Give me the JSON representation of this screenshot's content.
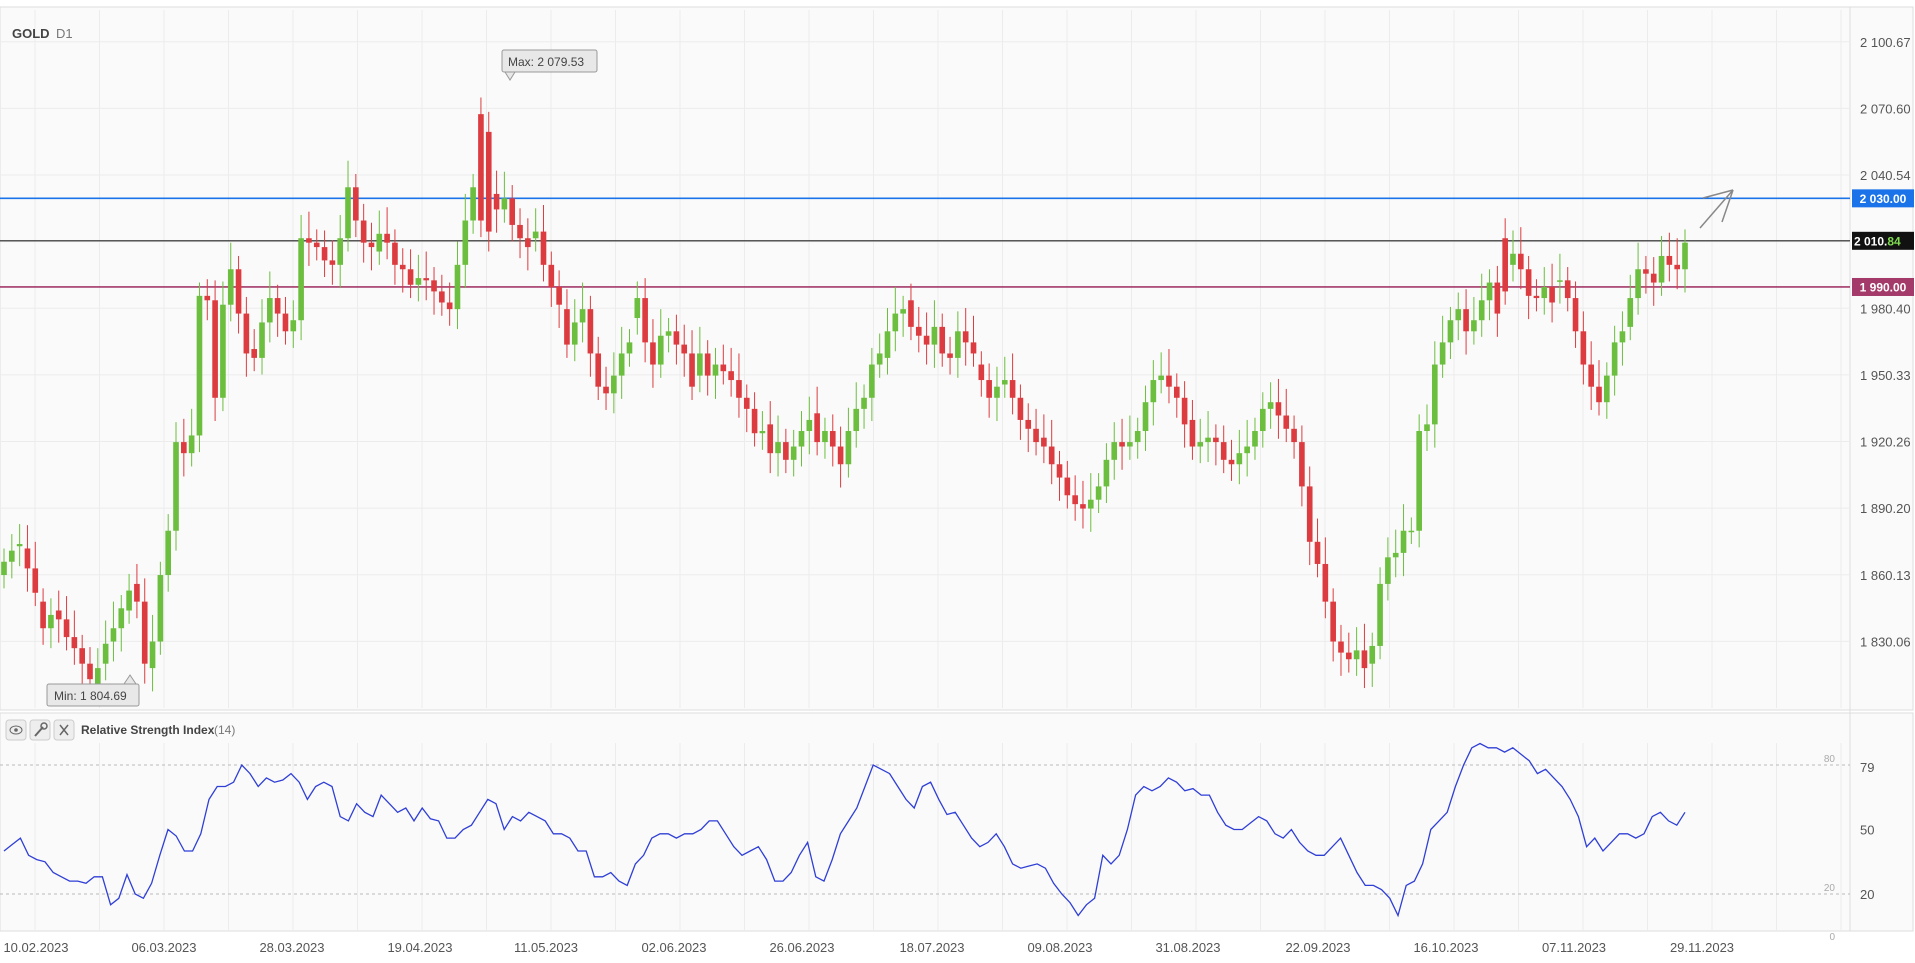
{
  "header": {
    "symbol": "GOLD",
    "timeframe": "D1"
  },
  "colors": {
    "up": "#6cbe3f",
    "down": "#dc3c40",
    "resistance": "#1a73e8",
    "current": "#222222",
    "support": "#a33a6a",
    "rsi": "#2f3fd6",
    "grid": "#ececec"
  },
  "chart_data": [
    {
      "type": "candlestick",
      "title": "",
      "yticks": [
        "2 100.67",
        "2 070.60",
        "2 040.54",
        "2 010.47",
        "1 980.40",
        "1 950.33",
        "1 920.26",
        "1 890.20",
        "1 860.13",
        "1 830.06"
      ],
      "xticks": [
        "10.02.2023",
        "06.03.2023",
        "28.03.2023",
        "19.04.2023",
        "11.05.2023",
        "02.06.2023",
        "26.06.2023",
        "18.07.2023",
        "09.08.2023",
        "31.08.2023",
        "22.09.2023",
        "16.10.2023",
        "07.11.2023",
        "29.11.2023"
      ],
      "ylim": [
        1800,
        2115
      ],
      "levels": [
        {
          "name": "resistance",
          "value": 2030.0,
          "label": "2 030.00"
        },
        {
          "name": "current",
          "value": 2010.84,
          "label_main": "2 010.",
          "label_tail": "84"
        },
        {
          "name": "support",
          "value": 1990.0,
          "label": "1 990.00"
        }
      ],
      "annotations": {
        "max": {
          "label": "Max: 2 079.53",
          "value": 2079.53
        },
        "min": {
          "label": "Min: 1 804.69",
          "value": 1804.69
        }
      },
      "close": [
        1866,
        1871,
        1874,
        1863,
        1852,
        1836,
        1842,
        1840,
        1832,
        1827,
        1820,
        1813,
        1818,
        1829,
        1836,
        1845,
        1853,
        1848,
        1820,
        1830,
        1860,
        1880,
        1920,
        1915,
        1923,
        1986,
        1984,
        1940,
        1982,
        1998,
        1978,
        1960,
        1958,
        1974,
        1985,
        1978,
        1970,
        1975,
        2012,
        2010,
        2008,
        2002,
        2000,
        2012,
        2035,
        2020,
        2010,
        2008,
        2014,
        2010,
        2000,
        1998,
        1991,
        1994,
        1993,
        1988,
        1983,
        1980,
        2000,
        2020,
        2035,
        2020,
        2015,
        2025,
        2030,
        2018,
        2012,
        2008,
        2015,
        2000,
        1990,
        1982,
        1964,
        1974,
        1980,
        1960,
        1945,
        1942,
        1950,
        1960,
        1965,
        1985,
        1965,
        1955,
        1968,
        1970,
        1964,
        1960,
        1945,
        1960,
        1950,
        1955,
        1952,
        1948,
        1940,
        1935,
        1924,
        1925,
        1915,
        1920,
        1912,
        1918,
        1925,
        1930,
        1920,
        1925,
        1918,
        1910,
        1925,
        1935,
        1940,
        1955,
        1960,
        1970,
        1978,
        1980,
        1972,
        1968,
        1964,
        1972,
        1960,
        1958,
        1970,
        1965,
        1960,
        1948,
        1940,
        1945,
        1948,
        1940,
        1930,
        1926,
        1920,
        1918,
        1910,
        1904,
        1896,
        1892,
        1890,
        1894,
        1900,
        1912,
        1920,
        1918,
        1920,
        1925,
        1938,
        1948,
        1950,
        1945,
        1940,
        1928,
        1918,
        1920,
        1922,
        1920,
        1912,
        1910,
        1915,
        1918,
        1925,
        1935,
        1938,
        1932,
        1926,
        1920,
        1900,
        1875,
        1865,
        1848,
        1830,
        1825,
        1822,
        1826,
        1818,
        1828,
        1856,
        1868,
        1870,
        1880,
        1880,
        1925,
        1928,
        1955,
        1965,
        1975,
        1980,
        1970,
        1975,
        1984,
        1992,
        1978,
        1988,
        2005,
        1998,
        1986,
        1985,
        1990,
        1983,
        1993,
        1985,
        1970,
        1955,
        1945,
        1938,
        1950,
        1965,
        1970,
        1985,
        1998,
        1996,
        1992,
        2004,
        2000,
        1998,
        2010
      ],
      "open": [
        1860,
        1866,
        1873,
        1872,
        1863,
        1848,
        1836,
        1844,
        1840,
        1832,
        1827,
        1820,
        1810,
        1820,
        1830,
        1836,
        1844,
        1856,
        1848,
        1818,
        1830,
        1860,
        1880,
        1920,
        1915,
        1923,
        1986,
        1984,
        1940,
        1982,
        1998,
        1978,
        1962,
        1958,
        1974,
        1985,
        1978,
        1970,
        1975,
        2012,
        2010,
        2008,
        2002,
        2000,
        2012,
        2035,
        2020,
        2010,
        2006,
        2014,
        2010,
        2000,
        1998,
        1991,
        1994,
        1993,
        1988,
        1983,
        1980,
        2000,
        2020,
        2068,
        2060,
        2032,
        2025,
        2030,
        2018,
        2012,
        2012,
        2015,
        2000,
        1990,
        1980,
        1964,
        1974,
        1980,
        1960,
        1945,
        1942,
        1950,
        1960,
        1976,
        1985,
        1965,
        1955,
        1968,
        1970,
        1964,
        1960,
        1950,
        1960,
        1950,
        1955,
        1952,
        1948,
        1940,
        1935,
        1924,
        1928,
        1915,
        1920,
        1912,
        1918,
        1925,
        1933,
        1920,
        1925,
        1918,
        1910,
        1925,
        1935,
        1940,
        1955,
        1958,
        1970,
        1978,
        1984,
        1972,
        1968,
        1964,
        1972,
        1960,
        1958,
        1970,
        1965,
        1955,
        1948,
        1940,
        1946,
        1948,
        1940,
        1930,
        1926,
        1922,
        1918,
        1910,
        1904,
        1896,
        1892,
        1890,
        1894,
        1900,
        1912,
        1920,
        1918,
        1920,
        1925,
        1938,
        1948,
        1950,
        1945,
        1940,
        1930,
        1918,
        1920,
        1922,
        1920,
        1912,
        1910,
        1915,
        1918,
        1925,
        1935,
        1938,
        1932,
        1926,
        1920,
        1900,
        1875,
        1865,
        1848,
        1830,
        1825,
        1822,
        1826,
        1820,
        1828,
        1856,
        1868,
        1870,
        1880,
        1880,
        1925,
        1928,
        1955,
        1965,
        1975,
        1980,
        1970,
        1975,
        1984,
        1992,
        2012,
        2000,
        2005,
        1998,
        1986,
        1985,
        1990,
        1993,
        1993,
        1985,
        1970,
        1955,
        1945,
        1938,
        1950,
        1965,
        1972,
        1985,
        1998,
        1996,
        1992,
        2004,
        2000,
        1998
      ]
    },
    {
      "type": "line",
      "title": "Relative Strength Index",
      "param": "(14)",
      "ylim": [
        0,
        100
      ],
      "yticks": [
        "79",
        "50",
        "20"
      ],
      "dashed_levels": [
        80,
        20
      ],
      "dashed_labels": [
        "80",
        "20"
      ],
      "zero_label": "0",
      "values": [
        40,
        43,
        46,
        38,
        36,
        35,
        30,
        28,
        26,
        26,
        25,
        28,
        28,
        15,
        18,
        29,
        20,
        18,
        25,
        38,
        50,
        47,
        40,
        40,
        48,
        64,
        70,
        70,
        72,
        80,
        76,
        70,
        74,
        72,
        73,
        76,
        72,
        64,
        70,
        72,
        70,
        56,
        54,
        62,
        58,
        56,
        66,
        62,
        58,
        60,
        54,
        60,
        55,
        54,
        46,
        46,
        50,
        52,
        58,
        64,
        62,
        50,
        56,
        54,
        58,
        56,
        54,
        48,
        48,
        46,
        40,
        40,
        28,
        28,
        30,
        26,
        24,
        34,
        38,
        46,
        48,
        48,
        46,
        48,
        48,
        50,
        54,
        54,
        48,
        42,
        38,
        40,
        42,
        36,
        26,
        26,
        30,
        38,
        44,
        28,
        26,
        36,
        48,
        54,
        60,
        70,
        80,
        78,
        76,
        70,
        64,
        60,
        70,
        72,
        64,
        57,
        58,
        52,
        46,
        42,
        44,
        48,
        42,
        34,
        32,
        33,
        34,
        32,
        25,
        20,
        16,
        10,
        15,
        18,
        38,
        34,
        38,
        50,
        66,
        70,
        68,
        70,
        74,
        72,
        68,
        69,
        66,
        66,
        58,
        52,
        50,
        50,
        53,
        56,
        54,
        48,
        46,
        50,
        44,
        40,
        38,
        38,
        42,
        46,
        38,
        30,
        24,
        24,
        22,
        18,
        10,
        24,
        26,
        34,
        50,
        54,
        58,
        70,
        80,
        88,
        90,
        88,
        88,
        86,
        88,
        85,
        82,
        76,
        78,
        74,
        70,
        64,
        56,
        42,
        46,
        40,
        44,
        48,
        48,
        46,
        48,
        56,
        58,
        54,
        52,
        58
      ]
    }
  ],
  "ui": {
    "eye_icon": "eye-icon",
    "settings_icon": "wrench-icon",
    "close_icon": "close-icon"
  }
}
